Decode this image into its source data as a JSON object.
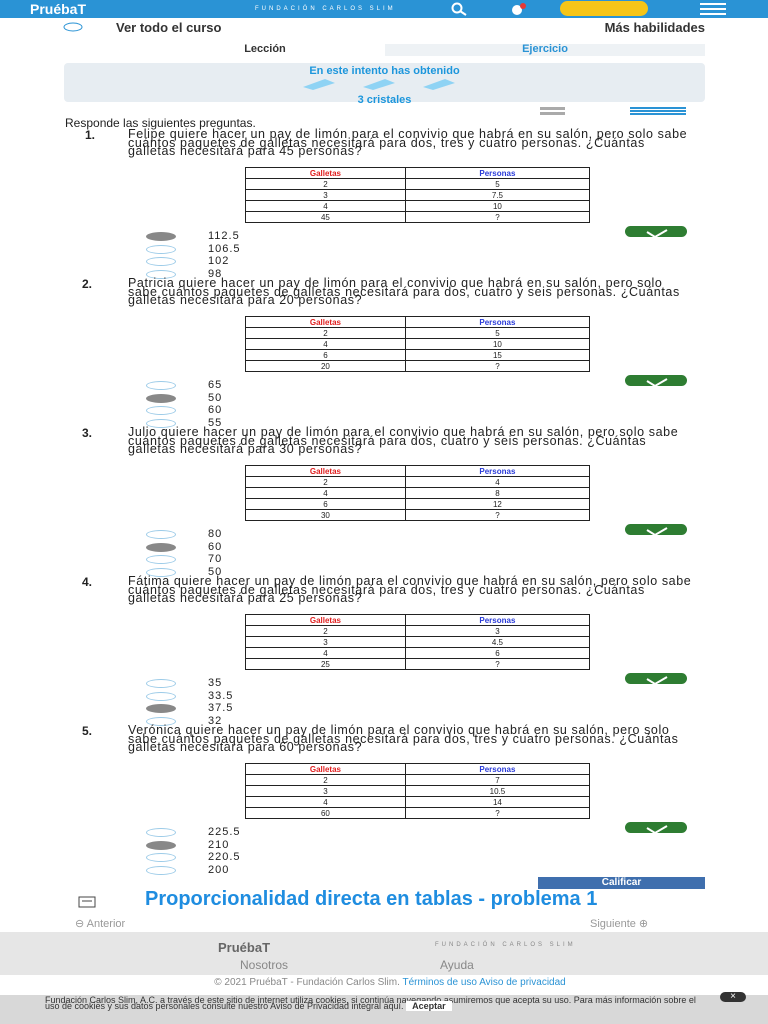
{
  "header": {
    "logo": "PruébaT",
    "foundation": "FUNDACIÓN CARLOS SLIM"
  },
  "nav": {
    "back": "Ver todo el curso",
    "more": "Más habilidades",
    "tab_lesson": "Lección",
    "tab_exercise": "Ejercicio"
  },
  "result": {
    "line1": "En este intento has obtenido",
    "line2": "3 cristales"
  },
  "instructions": "Responde las siguientes preguntas.",
  "questions": [
    {
      "number": "1.",
      "text": "Felipe quiere hacer un pay de limón para el convivio que habrá en su salón, pero solo sabe cuántos paquetes de galletas necesitará para dos, tres y cuatro personas. ¿Cuántas galletas necesitará para 45 personas?",
      "table": {
        "headers": [
          "Galletas",
          "Personas"
        ],
        "rows": [
          [
            "2",
            "5"
          ],
          [
            "3",
            "7.5"
          ],
          [
            "4",
            "10"
          ],
          [
            "45",
            "?"
          ]
        ]
      },
      "options": [
        "112.5",
        "106.5",
        "102",
        "98"
      ],
      "selected": 0
    },
    {
      "number": "2.",
      "text": "Patricia quiere hacer un pay de limón para el convivio que habrá en su salón, pero solo sabe cuántos paquetes de galletas necesitará para dos, cuatro y seis personas. ¿Cuántas galletas necesitará para 20 personas?",
      "table": {
        "headers": [
          "Galletas",
          "Personas"
        ],
        "rows": [
          [
            "2",
            "5"
          ],
          [
            "4",
            "10"
          ],
          [
            "6",
            "15"
          ],
          [
            "20",
            "?"
          ]
        ]
      },
      "options": [
        "65",
        "50",
        "60",
        "55"
      ],
      "selected": 1
    },
    {
      "number": "3.",
      "text": "Julio quiere hacer un pay de limón para el convivio que habrá en su salón, pero solo sabe cuántos paquetes de galletas necesitará para dos, cuatro y seis personas. ¿Cuántas galletas necesitará para 30 personas?",
      "table": {
        "headers": [
          "Galletas",
          "Personas"
        ],
        "rows": [
          [
            "2",
            "4"
          ],
          [
            "4",
            "8"
          ],
          [
            "6",
            "12"
          ],
          [
            "30",
            "?"
          ]
        ]
      },
      "options": [
        "80",
        "60",
        "70",
        "50"
      ],
      "selected": 1
    },
    {
      "number": "4.",
      "text": "Fátima quiere hacer un pay de limón para el convivio que habrá en su salón, pero solo sabe cuántos paquetes de galletas necesitará para dos, tres y cuatro personas. ¿Cuántas galletas necesitará para 25 personas?",
      "table": {
        "headers": [
          "Galletas",
          "Personas"
        ],
        "rows": [
          [
            "2",
            "3"
          ],
          [
            "3",
            "4.5"
          ],
          [
            "4",
            "6"
          ],
          [
            "25",
            "?"
          ]
        ]
      },
      "options": [
        "35",
        "33.5",
        "37.5",
        "32"
      ],
      "selected": 2
    },
    {
      "number": "5.",
      "text": "Verónica quiere hacer un pay de limón para el convivio que habrá en su salón, pero solo sabe cuántos paquetes de galletas necesitará para dos, tres y cuatro personas. ¿Cuántas galletas necesitará para 60 personas?",
      "table": {
        "headers": [
          "Galletas",
          "Personas"
        ],
        "rows": [
          [
            "2",
            "7"
          ],
          [
            "3",
            "10.5"
          ],
          [
            "4",
            "14"
          ],
          [
            "60",
            "?"
          ]
        ]
      },
      "options": [
        "225.5",
        "210",
        "220.5",
        "200"
      ],
      "selected": 1
    }
  ],
  "submit": "Calificar",
  "lesson_title": "Proporcionalidad directa en tablas - problema 1",
  "pager": {
    "prev": "Anterior",
    "next": "Siguiente"
  },
  "footer": {
    "logo": "PruébaT",
    "foundation": "FUNDACIÓN CARLOS SLIM",
    "links": [
      "Nosotros",
      "Ayuda"
    ],
    "copyright": "© 2021 PruébaT - Fundación Carlos Slim.",
    "terms": "Términos de uso",
    "privacy": "Aviso de privacidad"
  },
  "cookies": {
    "text": "Fundación Carlos Slim, A.C. a través de este sitio de internet utiliza cookies, si continúa navegando asumiremos que acepta su uso. Para más información sobre el uso de cookies y sus datos personales consulte nuestro Aviso de Privacidad integral aquí.",
    "accept": "Aceptar",
    "close": "×"
  }
}
